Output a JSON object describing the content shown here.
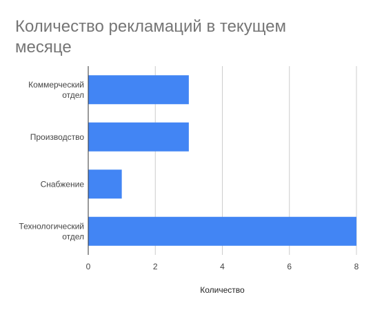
{
  "chart_data": {
    "type": "bar",
    "orientation": "horizontal",
    "title": "Количество рекламаций в текущем месяце",
    "categories": [
      "Коммерческий отдел",
      "Производство",
      "Снабжение",
      "Технологический отдел"
    ],
    "values": [
      3,
      3,
      1,
      8
    ],
    "xlabel": "Количество",
    "ylabel": "",
    "xlim": [
      0,
      8
    ],
    "xticks": [
      0,
      2,
      4,
      6,
      8
    ],
    "grid": true,
    "legend": "none",
    "bar_color": "#4285f4"
  }
}
